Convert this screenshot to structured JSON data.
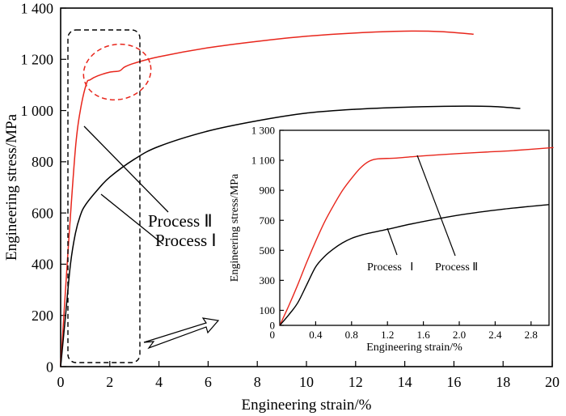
{
  "chart_data": [
    {
      "type": "line",
      "title": "",
      "xlabel": "Engineering strain/%",
      "ylabel": "Engineering stress/MPa",
      "xlim": [
        0,
        20
      ],
      "ylim": [
        0,
        1400
      ],
      "xticks": [
        0,
        2,
        4,
        6,
        8,
        10,
        12,
        14,
        16,
        18,
        20
      ],
      "xtick_labels": [
        "0",
        "2",
        "4",
        "6",
        "8",
        "10",
        "12",
        "14",
        "16",
        "18",
        "20"
      ],
      "yticks": [
        0,
        200,
        400,
        600,
        800,
        1000,
        1200,
        1400
      ],
      "ytick_labels": [
        "0",
        "200",
        "400",
        "600",
        "800",
        "1 000",
        "1 200",
        "1 400"
      ],
      "grid": false,
      "series": [
        {
          "name": "Process II",
          "color": "#e8261c",
          "x": [
            0,
            0.3,
            0.6,
            0.8,
            1.05,
            1.2,
            1.5,
            2.0,
            2.4,
            2.6,
            3.0,
            4,
            6,
            8,
            10,
            12,
            14,
            15.5,
            16.8
          ],
          "y": [
            0,
            450,
            850,
            1000,
            1105,
            1120,
            1135,
            1150,
            1155,
            1170,
            1185,
            1210,
            1245,
            1270,
            1290,
            1303,
            1310,
            1308,
            1298
          ]
        },
        {
          "name": "Process I",
          "color": "#000000",
          "x": [
            0,
            0.2,
            0.4,
            0.6,
            0.8,
            1.0,
            1.5,
            2.0,
            3.0,
            4,
            6,
            8,
            10,
            12,
            14,
            16,
            17.5,
            18.7
          ],
          "y": [
            0,
            200,
            400,
            520,
            590,
            630,
            690,
            740,
            810,
            860,
            920,
            960,
            990,
            1005,
            1013,
            1017,
            1016,
            1008
          ]
        }
      ],
      "annotations": [
        "Process Ⅱ",
        "Process Ⅰ"
      ]
    },
    {
      "type": "line",
      "title": "",
      "xlabel": "Engineering strain/%",
      "ylabel": "Engineering stress/MPa",
      "xlim": [
        0,
        3.0
      ],
      "ylim": [
        0,
        1300
      ],
      "xticks": [
        0.4,
        0.8,
        1.2,
        1.6,
        2.0,
        2.4,
        2.8
      ],
      "xtick_labels": [
        "0.4",
        "0.8",
        "1.2",
        "1.6",
        "2.0",
        "2.4",
        "2.8"
      ],
      "yticks": [
        0,
        100,
        300,
        500,
        700,
        900,
        1100,
        1300
      ],
      "ytick_labels": [
        "0",
        "100",
        "300",
        "500",
        "700",
        "900",
        "1 100",
        "1 300"
      ],
      "grid": false,
      "series": [
        {
          "name": "Process II",
          "color": "#e8261c",
          "x": [
            0,
            0.1,
            0.2,
            0.3,
            0.4,
            0.5,
            0.6,
            0.7,
            0.8,
            0.9,
            1.0,
            1.1,
            1.3,
            1.6,
            2.0,
            2.3,
            2.6,
            3.05
          ],
          "y": [
            0,
            130,
            270,
            420,
            560,
            690,
            800,
            900,
            980,
            1050,
            1095,
            1110,
            1115,
            1130,
            1145,
            1155,
            1165,
            1185
          ]
        },
        {
          "name": "Process I",
          "color": "#000000",
          "x": [
            0,
            0.1,
            0.2,
            0.3,
            0.4,
            0.5,
            0.6,
            0.7,
            0.8,
            0.9,
            1.0,
            1.2,
            1.5,
            2.0,
            2.5,
            3.0
          ],
          "y": [
            0,
            70,
            150,
            270,
            390,
            460,
            510,
            550,
            580,
            600,
            615,
            640,
            680,
            735,
            775,
            805
          ]
        }
      ],
      "annotations": [
        "Process   Ⅰ",
        "Process Ⅱ"
      ]
    }
  ]
}
